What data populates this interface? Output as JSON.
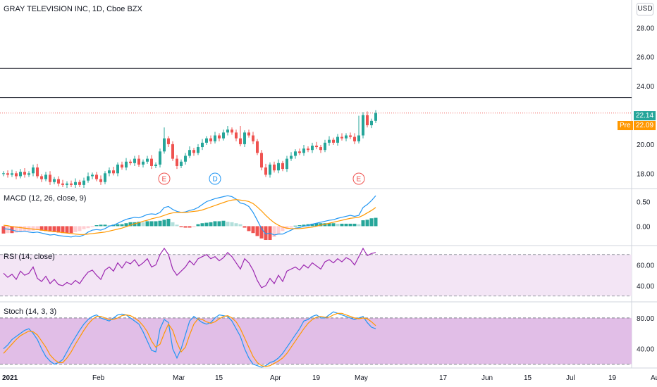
{
  "chart_title": "GRAY TELEVISION INC, 1D, Cboe BZX",
  "currency_button": "USD",
  "last_price_label": "22.14",
  "pre_label": "Pre",
  "pre_price_label": "22.09",
  "colors": {
    "up": "#26a69a",
    "down": "#ef5350",
    "macd": "#2196f3",
    "signal": "#ff9800",
    "rsi": "#9c27b0",
    "earn": "#ef5350",
    "div": "#2196f3"
  },
  "price_axis": {
    "ticks": [
      "28.00",
      "26.00",
      "24.00",
      "22.00",
      "20.00",
      "18.00"
    ],
    "values": [
      28,
      26,
      24,
      22,
      20,
      18
    ],
    "range": [
      17.0,
      29.9
    ]
  },
  "hlines": [
    25.2,
    23.2
  ],
  "events": [
    {
      "label": "E",
      "index": 38,
      "kind": "earnings"
    },
    {
      "label": "D",
      "index": 50,
      "kind": "dividend"
    },
    {
      "label": "E",
      "index": 84,
      "kind": "earnings"
    }
  ],
  "x_axis": {
    "labels": [
      "2021",
      "Feb",
      "Mar",
      "15",
      "Apr",
      "19",
      "May",
      "17",
      "Jun",
      "15",
      "Jul",
      "19",
      "Aug"
    ],
    "indices": [
      0,
      22,
      41,
      51,
      64,
      74,
      84,
      104,
      114,
      124,
      134,
      144,
      154
    ]
  },
  "macd": {
    "title": "MACD (12, 26, close, 9)",
    "ticks": [
      "0.50",
      "0.00"
    ],
    "values": [
      0.5,
      0.0
    ],
    "range": [
      -0.38,
      0.75
    ]
  },
  "rsi": {
    "title": "RSI (14, close)",
    "ticks": [
      "60.00",
      "40.00"
    ],
    "values": [
      60,
      40
    ],
    "range": [
      25,
      78
    ],
    "band": [
      30,
      70
    ]
  },
  "stoch": {
    "title": "Stoch (14, 3, 3)",
    "ticks": [
      "80.00",
      "40.00"
    ],
    "values": [
      80,
      40
    ],
    "range": [
      15,
      100
    ],
    "band": [
      20,
      80
    ]
  },
  "chart_data": {
    "type": "candlestick",
    "close": [
      18.0,
      17.9,
      18.0,
      17.8,
      18.1,
      17.9,
      18.0,
      18.4,
      17.8,
      17.6,
      17.9,
      17.4,
      17.6,
      17.3,
      17.2,
      17.3,
      17.2,
      17.4,
      17.2,
      17.5,
      17.8,
      17.9,
      17.6,
      17.4,
      18.0,
      18.2,
      18.0,
      18.6,
      18.4,
      18.8,
      18.7,
      19.0,
      18.6,
      18.8,
      19.0,
      18.5,
      18.6,
      19.5,
      20.4,
      20.0,
      19.0,
      18.5,
      18.8,
      19.2,
      19.6,
      19.4,
      19.8,
      20.1,
      20.4,
      20.2,
      20.6,
      20.4,
      20.8,
      21.0,
      20.8,
      20.4,
      20.0,
      20.8,
      20.6,
      20.2,
      19.4,
      18.4,
      17.9,
      18.6,
      18.2,
      18.7,
      18.3,
      19.0,
      19.2,
      19.5,
      19.4,
      19.7,
      19.6,
      19.9,
      19.8,
      19.6,
      20.1,
      20.3,
      20.1,
      20.5,
      20.4,
      20.6,
      20.5,
      20.2,
      20.6,
      22.0,
      21.3,
      21.6,
      22.14
    ],
    "macd_line": [
      -0.05,
      -0.06,
      -0.08,
      -0.1,
      -0.11,
      -0.1,
      -0.12,
      -0.13,
      -0.12,
      -0.14,
      -0.16,
      -0.18,
      -0.17,
      -0.19,
      -0.2,
      -0.21,
      -0.22,
      -0.2,
      -0.21,
      -0.18,
      -0.12,
      -0.08,
      -0.07,
      -0.08,
      -0.05,
      0.0,
      0.02,
      0.06,
      0.1,
      0.14,
      0.16,
      0.18,
      0.17,
      0.2,
      0.24,
      0.25,
      0.24,
      0.28,
      0.38,
      0.4,
      0.34,
      0.3,
      0.28,
      0.29,
      0.32,
      0.34,
      0.38,
      0.44,
      0.5,
      0.53,
      0.56,
      0.58,
      0.6,
      0.62,
      0.6,
      0.55,
      0.47,
      0.45,
      0.4,
      0.28,
      0.12,
      -0.05,
      -0.16,
      -0.14,
      -0.18,
      -0.16,
      -0.16,
      -0.12,
      -0.08,
      -0.04,
      -0.03,
      0.0,
      0.01,
      0.04,
      0.06,
      0.08,
      0.1,
      0.12,
      0.13,
      0.16,
      0.18,
      0.2,
      0.22,
      0.2,
      0.22,
      0.38,
      0.44,
      0.52,
      0.62
    ],
    "signal_line": [
      0.02,
      0.01,
      -0.01,
      -0.02,
      -0.03,
      -0.04,
      -0.05,
      -0.06,
      -0.07,
      -0.08,
      -0.09,
      -0.1,
      -0.11,
      -0.12,
      -0.13,
      -0.14,
      -0.15,
      -0.16,
      -0.17,
      -0.17,
      -0.16,
      -0.15,
      -0.14,
      -0.13,
      -0.12,
      -0.1,
      -0.08,
      -0.06,
      -0.04,
      -0.01,
      0.02,
      0.05,
      0.07,
      0.1,
      0.12,
      0.15,
      0.17,
      0.19,
      0.22,
      0.25,
      0.27,
      0.28,
      0.28,
      0.28,
      0.29,
      0.3,
      0.31,
      0.33,
      0.36,
      0.39,
      0.42,
      0.45,
      0.48,
      0.51,
      0.53,
      0.54,
      0.53,
      0.52,
      0.5,
      0.46,
      0.39,
      0.31,
      0.22,
      0.14,
      0.07,
      0.02,
      -0.02,
      -0.04,
      -0.05,
      -0.05,
      -0.05,
      -0.04,
      -0.03,
      -0.02,
      0.0,
      0.02,
      0.04,
      0.06,
      0.08,
      0.1,
      0.12,
      0.14,
      0.16,
      0.17,
      0.18,
      0.22,
      0.27,
      0.32,
      0.38
    ],
    "macd_hist": [
      -0.15,
      -0.14,
      -0.14,
      -0.13,
      -0.12,
      -0.11,
      -0.1,
      -0.09,
      -0.08,
      -0.09,
      -0.1,
      -0.11,
      -0.12,
      -0.13,
      -0.14,
      -0.14,
      -0.14,
      -0.12,
      -0.1,
      -0.06,
      -0.04,
      -0.02,
      0.02,
      0.03,
      0.03,
      0.02,
      0.03,
      0.04,
      0.04,
      0.06,
      0.08,
      0.08,
      0.09,
      0.08,
      0.1,
      0.1,
      0.1,
      0.11,
      0.13,
      0.15,
      0.08,
      0.03,
      -0.02,
      -0.03,
      -0.03,
      -0.02,
      0.04,
      0.06,
      0.07,
      0.08,
      0.1,
      0.1,
      0.11,
      0.09,
      0.08,
      0.06,
      0.04,
      -0.03,
      -0.1,
      -0.14,
      -0.2,
      -0.25,
      -0.28,
      -0.28,
      -0.22,
      -0.16,
      -0.1,
      -0.06,
      -0.03,
      0.01,
      0.02,
      0.03,
      0.04,
      0.05,
      0.06,
      0.06,
      0.06,
      0.06,
      0.06,
      0.05,
      0.05,
      0.05,
      0.05,
      0.05,
      0.04,
      0.12,
      0.13,
      0.16,
      0.17
    ],
    "rsi": [
      52,
      48,
      51,
      46,
      54,
      50,
      52,
      58,
      47,
      44,
      49,
      42,
      46,
      41,
      40,
      43,
      41,
      45,
      42,
      48,
      53,
      55,
      50,
      46,
      55,
      58,
      54,
      62,
      57,
      63,
      61,
      65,
      59,
      62,
      66,
      58,
      60,
      70,
      76,
      70,
      56,
      50,
      54,
      58,
      64,
      60,
      66,
      68,
      70,
      66,
      68,
      64,
      67,
      72,
      68,
      62,
      56,
      66,
      62,
      55,
      45,
      38,
      40,
      47,
      42,
      50,
      44,
      54,
      56,
      58,
      55,
      60,
      57,
      62,
      59,
      56,
      63,
      65,
      62,
      66,
      63,
      67,
      65,
      60,
      68,
      76,
      69,
      71,
      72
    ],
    "stoch_k": [
      40,
      45,
      52,
      56,
      60,
      64,
      66,
      60,
      52,
      40,
      30,
      24,
      20,
      22,
      26,
      36,
      46,
      55,
      64,
      72,
      78,
      82,
      84,
      80,
      78,
      76,
      80,
      84,
      85,
      84,
      80,
      76,
      72,
      62,
      50,
      38,
      36,
      66,
      78,
      74,
      40,
      28,
      40,
      58,
      76,
      82,
      78,
      74,
      72,
      74,
      80,
      84,
      83,
      82,
      76,
      66,
      56,
      40,
      28,
      20,
      18,
      16,
      18,
      22,
      24,
      28,
      34,
      42,
      50,
      58,
      66,
      76,
      78,
      82,
      84,
      80,
      80,
      84,
      88,
      86,
      84,
      82,
      80,
      78,
      80,
      82,
      74,
      68,
      66
    ],
    "stoch_d": [
      34,
      40,
      46,
      52,
      57,
      60,
      63,
      62,
      58,
      50,
      42,
      32,
      26,
      22,
      22,
      28,
      36,
      46,
      55,
      64,
      72,
      78,
      82,
      82,
      80,
      78,
      78,
      80,
      83,
      84,
      83,
      80,
      76,
      70,
      62,
      50,
      42,
      46,
      60,
      72,
      64,
      48,
      36,
      42,
      58,
      72,
      79,
      78,
      75,
      73,
      75,
      79,
      82,
      83,
      80,
      75,
      66,
      54,
      42,
      30,
      22,
      18,
      17,
      18,
      21,
      24,
      28,
      34,
      42,
      50,
      58,
      66,
      73,
      78,
      81,
      82,
      81,
      81,
      84,
      86,
      86,
      84,
      82,
      80,
      79,
      80,
      79,
      75,
      70
    ]
  }
}
